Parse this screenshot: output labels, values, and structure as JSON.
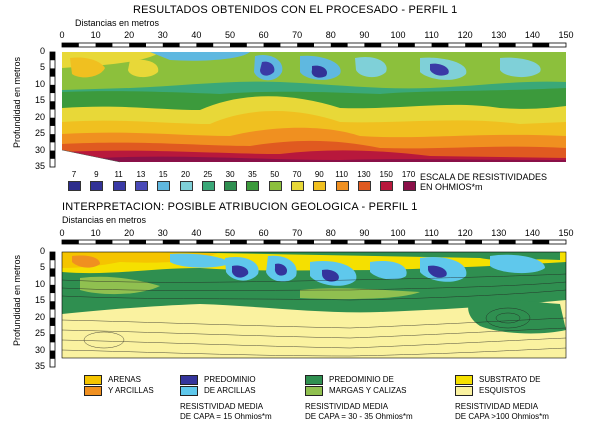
{
  "top": {
    "title": "RESULTADOS OBTENIDOS CON EL PROCESADO - PERFIL 1",
    "xaxis_title": "Distancias en metros",
    "yaxis_title": "Profundidad en metros",
    "x_ticks": [
      "0",
      "10",
      "20",
      "30",
      "40",
      "50",
      "60",
      "70",
      "80",
      "90",
      "100",
      "110",
      "120",
      "130",
      "140",
      "150"
    ],
    "y_ticks": [
      "0",
      "5",
      "10",
      "15",
      "20",
      "25",
      "30",
      "35"
    ],
    "scale_values": [
      "7",
      "9",
      "11",
      "13",
      "15",
      "20",
      "25",
      "30",
      "35",
      "50",
      "70",
      "90",
      "110",
      "130",
      "150",
      "170"
    ],
    "scale_colors": [
      "#2c2c8c",
      "#323296",
      "#3a3aa6",
      "#4a4ab8",
      "#5fb8e0",
      "#7fd0d8",
      "#3aa878",
      "#2f8f50",
      "#3c9a3c",
      "#8cc03c",
      "#e8d838",
      "#f0c020",
      "#f09020",
      "#e05a20",
      "#b8183c",
      "#8a1048"
    ],
    "scale_label_1": "ESCALA DE RESISTIVIDADES",
    "scale_label_2": "EN OHMIOS*m"
  },
  "bottom": {
    "title": "INTERPRETACION: POSIBLE ATRIBUCION GEOLOGICA - PERFIL 1",
    "xaxis_title": "Distancias en metros",
    "yaxis_title": "Profundidad en metros",
    "x_ticks": [
      "0",
      "10",
      "20",
      "30",
      "40",
      "50",
      "60",
      "70",
      "80",
      "90",
      "100",
      "110",
      "120",
      "130",
      "140",
      "150"
    ],
    "y_ticks": [
      "0",
      "5",
      "10",
      "15",
      "20",
      "25",
      "30",
      "35"
    ]
  },
  "legend": {
    "col1": {
      "item1": "ARENAS",
      "item1_color": "#f5c400",
      "item2": "Y ARCILLAS",
      "item2_color": "#f09020"
    },
    "col2": {
      "item1": "PREDOMINIO",
      "item1_color": "#34349c",
      "item2": "DE ARCILLAS",
      "item2_color": "#5fc8ec",
      "note1": "RESISTIVIDAD MEDIA",
      "note2": "DE CAPA = 15 Ohmios*m"
    },
    "col3": {
      "item1": "PREDOMINIO DE",
      "item1_color": "#2f8f50",
      "item2": "MARGAS Y CALIZAS",
      "item2_color": "#90c050",
      "note1": "RESISTIVIDAD MEDIA",
      "note2": "DE CAPA = 30 - 35 Ohmios*m"
    },
    "col4": {
      "item1": "SUBSTRATO DE",
      "item1_color": "#f5e000",
      "item2": "ESQUISTOS",
      "item2_color": "#faf2a0",
      "note1": "RESISTIVIDAD MEDIA",
      "note2": "DE CAPA >100 Ohmios*m"
    }
  }
}
